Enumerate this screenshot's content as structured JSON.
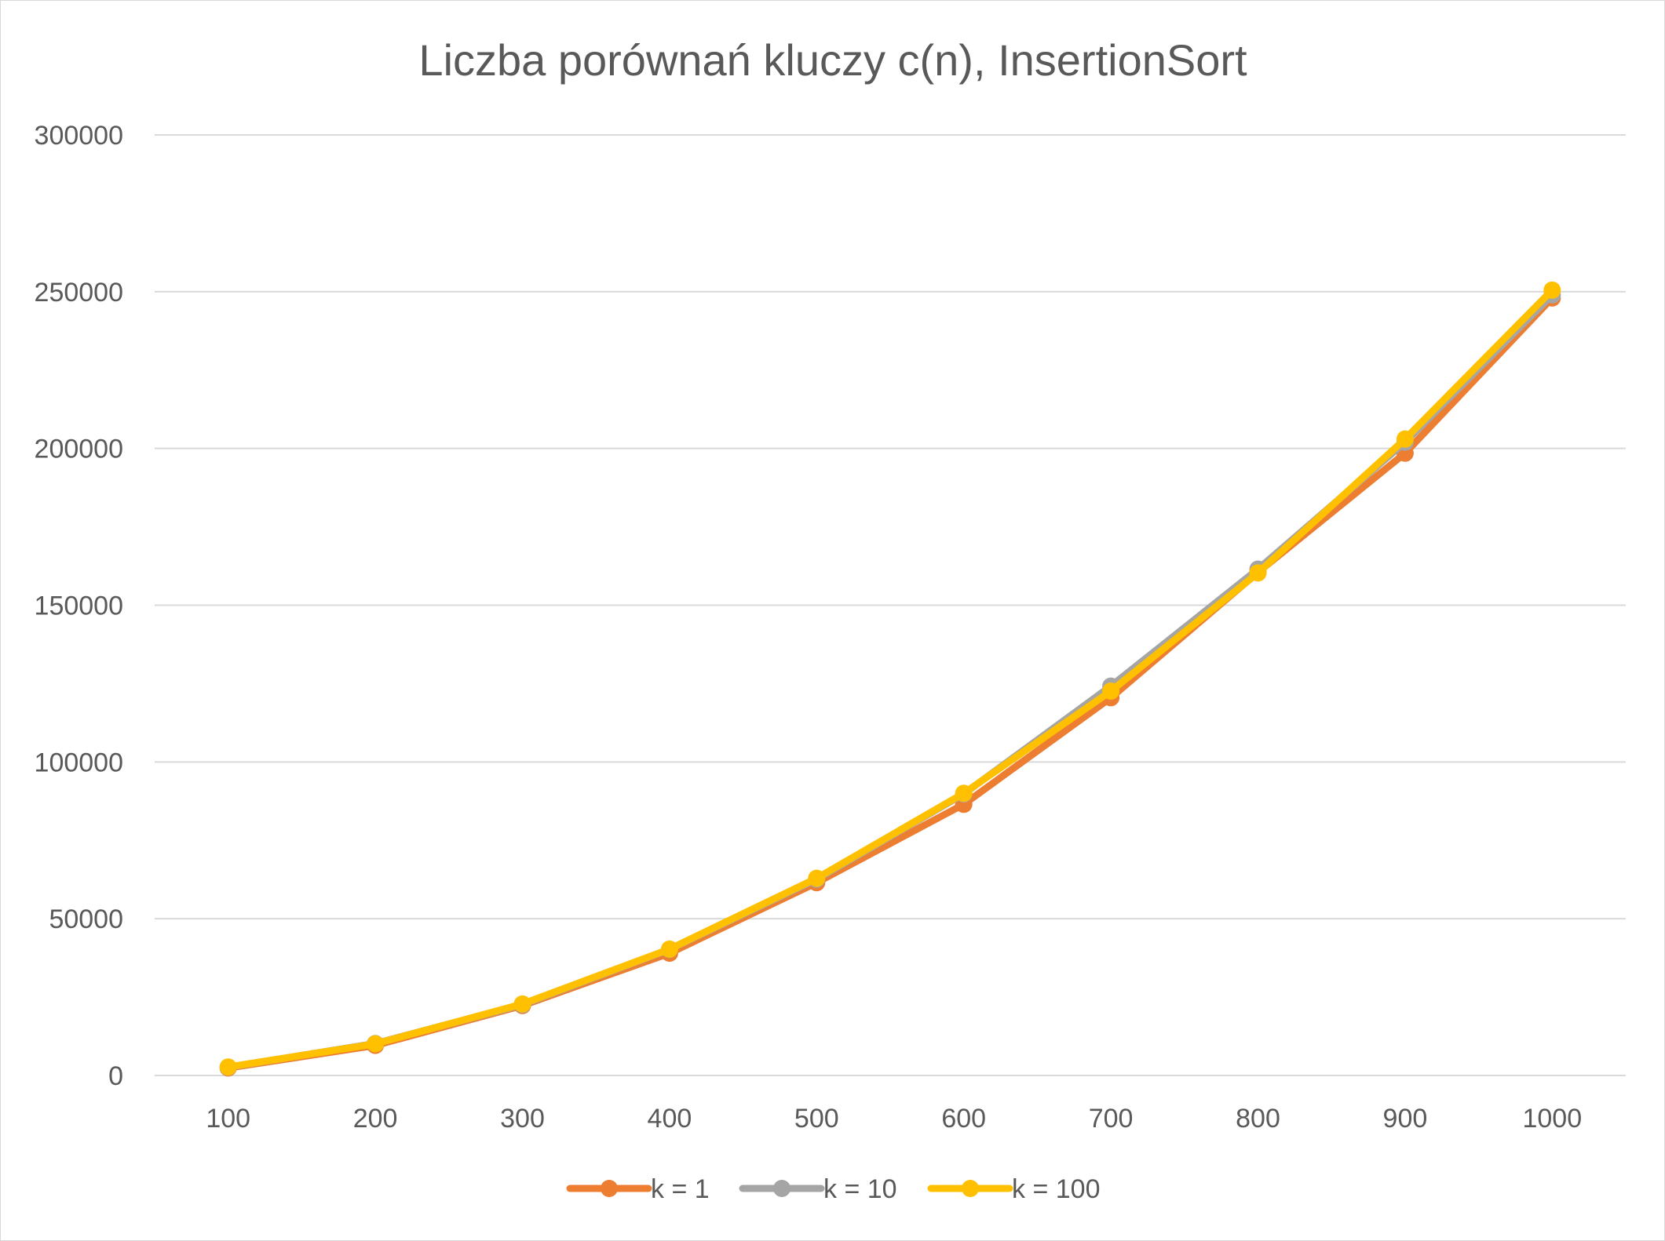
{
  "chart_data": {
    "type": "line",
    "title": "Liczba porównań kluczy c(n), InsertionSort",
    "xlabel": "",
    "ylabel": "",
    "categories": [
      "100",
      "200",
      "300",
      "400",
      "500",
      "600",
      "700",
      "800",
      "900",
      "1000"
    ],
    "ylim": [
      0,
      300000
    ],
    "yticks": [
      "0",
      "50000",
      "100000",
      "150000",
      "200000",
      "250000",
      "300000"
    ],
    "grid": true,
    "legend_position": "bottom",
    "series": [
      {
        "name": "k = 1",
        "color": "#ED7D31",
        "values": [
          2400,
          9600,
          22300,
          39000,
          61500,
          86500,
          120500,
          160500,
          198500,
          248000
        ]
      },
      {
        "name": "k = 10",
        "color": "#A5A5A5",
        "values": [
          2600,
          10200,
          22600,
          40200,
          62600,
          89800,
          124200,
          161500,
          202000,
          249000
        ]
      },
      {
        "name": "k = 100",
        "color": "#FFC000",
        "values": [
          2700,
          10100,
          22800,
          40300,
          62900,
          90000,
          122600,
          160300,
          203000,
          250500
        ]
      }
    ]
  }
}
